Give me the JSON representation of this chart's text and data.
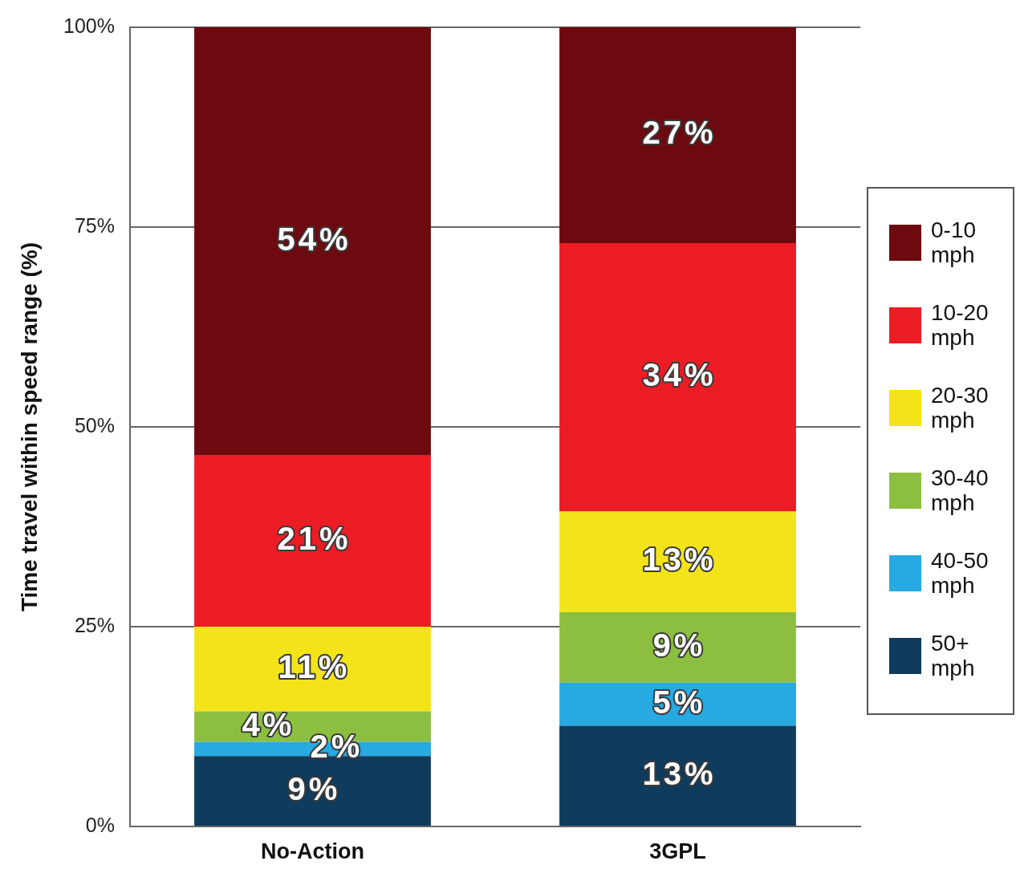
{
  "chart_data": {
    "type": "bar",
    "stacked": true,
    "categories": [
      "No-Action",
      "3GPL"
    ],
    "ylabel": "Time travel within speed range (%)",
    "ylim": [
      0,
      100
    ],
    "yticks": [
      {
        "value": 0,
        "label": "0%"
      },
      {
        "value": 25,
        "label": "25%"
      },
      {
        "value": 50,
        "label": "50%"
      },
      {
        "value": 75,
        "label": "75%"
      },
      {
        "value": 100,
        "label": "100%"
      }
    ],
    "grid": "y",
    "legend": "right",
    "series": [
      {
        "name": "50+ mph",
        "color": "#0f3b5c",
        "values": [
          8.8,
          12.6
        ],
        "value_labels": [
          "9%",
          "13%"
        ]
      },
      {
        "name": "40-50 mph",
        "color": "#27a9e1",
        "values": [
          1.8,
          5.4
        ],
        "value_labels": [
          "2%",
          "5%"
        ]
      },
      {
        "name": "30-40 mph",
        "color": "#8cbf40",
        "values": [
          3.8,
          8.8
        ],
        "value_labels": [
          "4%",
          "9%"
        ]
      },
      {
        "name": "20-30 mph",
        "color": "#f3e41a",
        "values": [
          10.6,
          12.6
        ],
        "value_labels": [
          "11%",
          "13%"
        ]
      },
      {
        "name": "10-20 mph",
        "color": "#ec1c24",
        "values": [
          21.4,
          33.6
        ],
        "value_labels": [
          "21%",
          "34%"
        ]
      },
      {
        "name": "0-10 mph",
        "color": "#6c0a0f",
        "values": [
          53.6,
          27.0
        ],
        "value_labels": [
          "54%",
          "27%"
        ]
      }
    ]
  }
}
